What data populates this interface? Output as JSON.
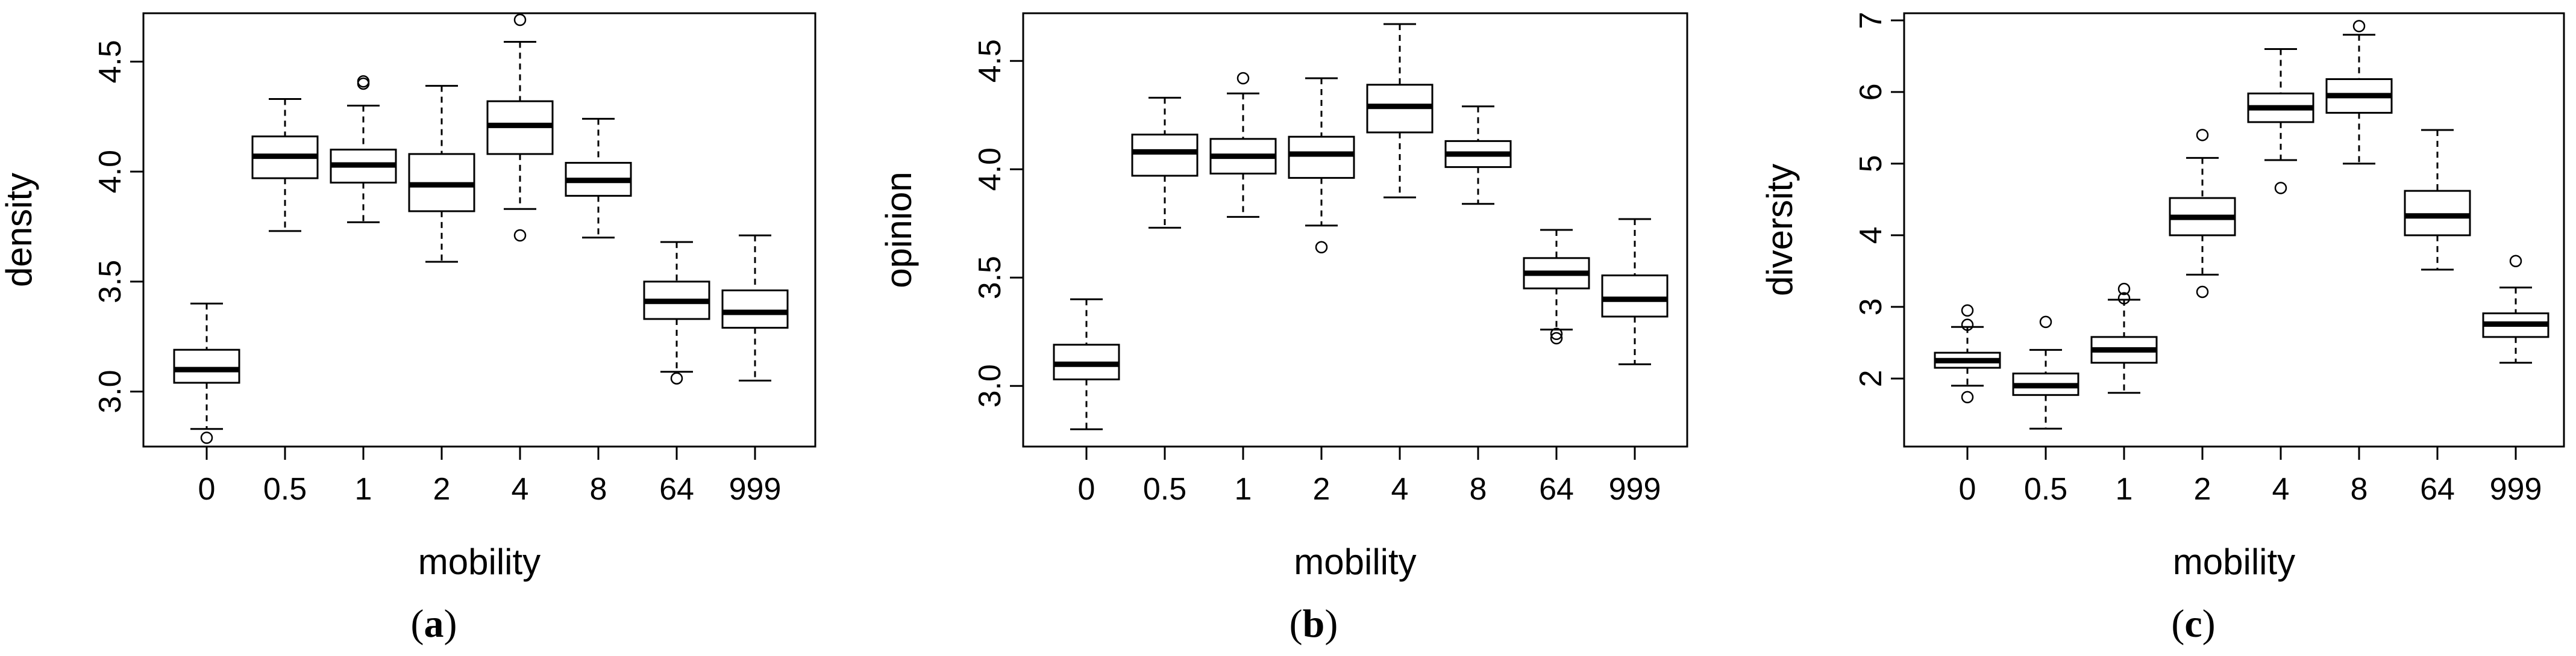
{
  "chart_data": [
    {
      "type": "boxplot",
      "panel_label": "(a)",
      "panel_letter": "a",
      "xlabel": "mobility",
      "ylabel": "density",
      "categories": [
        "0",
        "0.5",
        "1",
        "2",
        "4",
        "8",
        "64",
        "999"
      ],
      "ylim": [
        2.75,
        4.72
      ],
      "yticks": [
        3.0,
        3.5,
        4.0,
        4.5
      ],
      "ytick_labels": [
        "3.0",
        "3.5",
        "4.0",
        "4.5"
      ],
      "boxes": [
        {
          "whisker_low": 2.83,
          "q1": 3.04,
          "median": 3.1,
          "q3": 3.19,
          "whisker_high": 3.4,
          "outliers": [
            2.79
          ]
        },
        {
          "whisker_low": 3.73,
          "q1": 3.97,
          "median": 4.07,
          "q3": 4.16,
          "whisker_high": 4.33,
          "outliers": []
        },
        {
          "whisker_low": 3.77,
          "q1": 3.95,
          "median": 4.03,
          "q3": 4.1,
          "whisker_high": 4.3,
          "outliers": [
            4.4,
            4.41
          ]
        },
        {
          "whisker_low": 3.59,
          "q1": 3.82,
          "median": 3.94,
          "q3": 4.08,
          "whisker_high": 4.39,
          "outliers": []
        },
        {
          "whisker_low": 3.83,
          "q1": 4.08,
          "median": 4.21,
          "q3": 4.32,
          "whisker_high": 4.59,
          "outliers": [
            4.69,
            3.71
          ]
        },
        {
          "whisker_low": 3.7,
          "q1": 3.89,
          "median": 3.96,
          "q3": 4.04,
          "whisker_high": 4.24,
          "outliers": []
        },
        {
          "whisker_low": 3.09,
          "q1": 3.33,
          "median": 3.41,
          "q3": 3.5,
          "whisker_high": 3.68,
          "outliers": [
            3.06
          ]
        },
        {
          "whisker_low": 3.05,
          "q1": 3.29,
          "median": 3.36,
          "q3": 3.46,
          "whisker_high": 3.71,
          "outliers": []
        }
      ]
    },
    {
      "type": "boxplot",
      "panel_label": "(b)",
      "panel_letter": "b",
      "xlabel": "mobility",
      "ylabel": "opinion",
      "categories": [
        "0",
        "0.5",
        "1",
        "2",
        "4",
        "8",
        "64",
        "999"
      ],
      "ylim": [
        2.72,
        4.72
      ],
      "yticks": [
        3.0,
        3.5,
        4.0,
        4.5
      ],
      "ytick_labels": [
        "3.0",
        "3.5",
        "4.0",
        "4.5"
      ],
      "boxes": [
        {
          "whisker_low": 2.8,
          "q1": 3.03,
          "median": 3.1,
          "q3": 3.19,
          "whisker_high": 3.4,
          "outliers": []
        },
        {
          "whisker_low": 3.73,
          "q1": 3.97,
          "median": 4.08,
          "q3": 4.16,
          "whisker_high": 4.33,
          "outliers": []
        },
        {
          "whisker_low": 3.78,
          "q1": 3.98,
          "median": 4.06,
          "q3": 4.14,
          "whisker_high": 4.35,
          "outliers": [
            4.42
          ]
        },
        {
          "whisker_low": 3.74,
          "q1": 3.96,
          "median": 4.07,
          "q3": 4.15,
          "whisker_high": 4.42,
          "outliers": [
            3.64
          ]
        },
        {
          "whisker_low": 3.87,
          "q1": 4.17,
          "median": 4.29,
          "q3": 4.39,
          "whisker_high": 4.67,
          "outliers": []
        },
        {
          "whisker_low": 3.84,
          "q1": 4.01,
          "median": 4.07,
          "q3": 4.13,
          "whisker_high": 4.29,
          "outliers": []
        },
        {
          "whisker_low": 3.26,
          "q1": 3.45,
          "median": 3.52,
          "q3": 3.59,
          "whisker_high": 3.72,
          "outliers": [
            3.22,
            3.24
          ]
        },
        {
          "whisker_low": 3.1,
          "q1": 3.32,
          "median": 3.4,
          "q3": 3.51,
          "whisker_high": 3.77,
          "outliers": []
        }
      ]
    },
    {
      "type": "boxplot",
      "panel_label": "(c)",
      "panel_letter": "c",
      "xlabel": "mobility",
      "ylabel": "diversity",
      "categories": [
        "0",
        "0.5",
        "1",
        "2",
        "4",
        "8",
        "64",
        "999"
      ],
      "ylim": [
        1.05,
        7.1
      ],
      "yticks": [
        2,
        3,
        4,
        5,
        6,
        7
      ],
      "ytick_labels": [
        "2",
        "3",
        "4",
        "5",
        "6",
        "7"
      ],
      "boxes": [
        {
          "whisker_low": 1.9,
          "q1": 2.15,
          "median": 2.25,
          "q3": 2.36,
          "whisker_high": 2.72,
          "outliers": [
            2.95,
            2.75,
            1.74
          ]
        },
        {
          "whisker_low": 1.3,
          "q1": 1.77,
          "median": 1.9,
          "q3": 2.07,
          "whisker_high": 2.4,
          "outliers": [
            2.79
          ]
        },
        {
          "whisker_low": 1.8,
          "q1": 2.22,
          "median": 2.4,
          "q3": 2.58,
          "whisker_high": 3.1,
          "outliers": [
            3.25,
            3.12
          ]
        },
        {
          "whisker_low": 3.45,
          "q1": 4.0,
          "median": 4.25,
          "q3": 4.52,
          "whisker_high": 5.08,
          "outliers": [
            5.4,
            3.21
          ]
        },
        {
          "whisker_low": 5.05,
          "q1": 5.58,
          "median": 5.78,
          "q3": 5.98,
          "whisker_high": 6.6,
          "outliers": [
            4.66
          ]
        },
        {
          "whisker_low": 5.0,
          "q1": 5.71,
          "median": 5.95,
          "q3": 6.18,
          "whisker_high": 6.8,
          "outliers": [
            6.92
          ]
        },
        {
          "whisker_low": 3.52,
          "q1": 4.0,
          "median": 4.27,
          "q3": 4.62,
          "whisker_high": 5.47,
          "outliers": []
        },
        {
          "whisker_low": 2.22,
          "q1": 2.58,
          "median": 2.76,
          "q3": 2.91,
          "whisker_high": 3.27,
          "outliers": [
            3.64
          ]
        }
      ]
    }
  ]
}
